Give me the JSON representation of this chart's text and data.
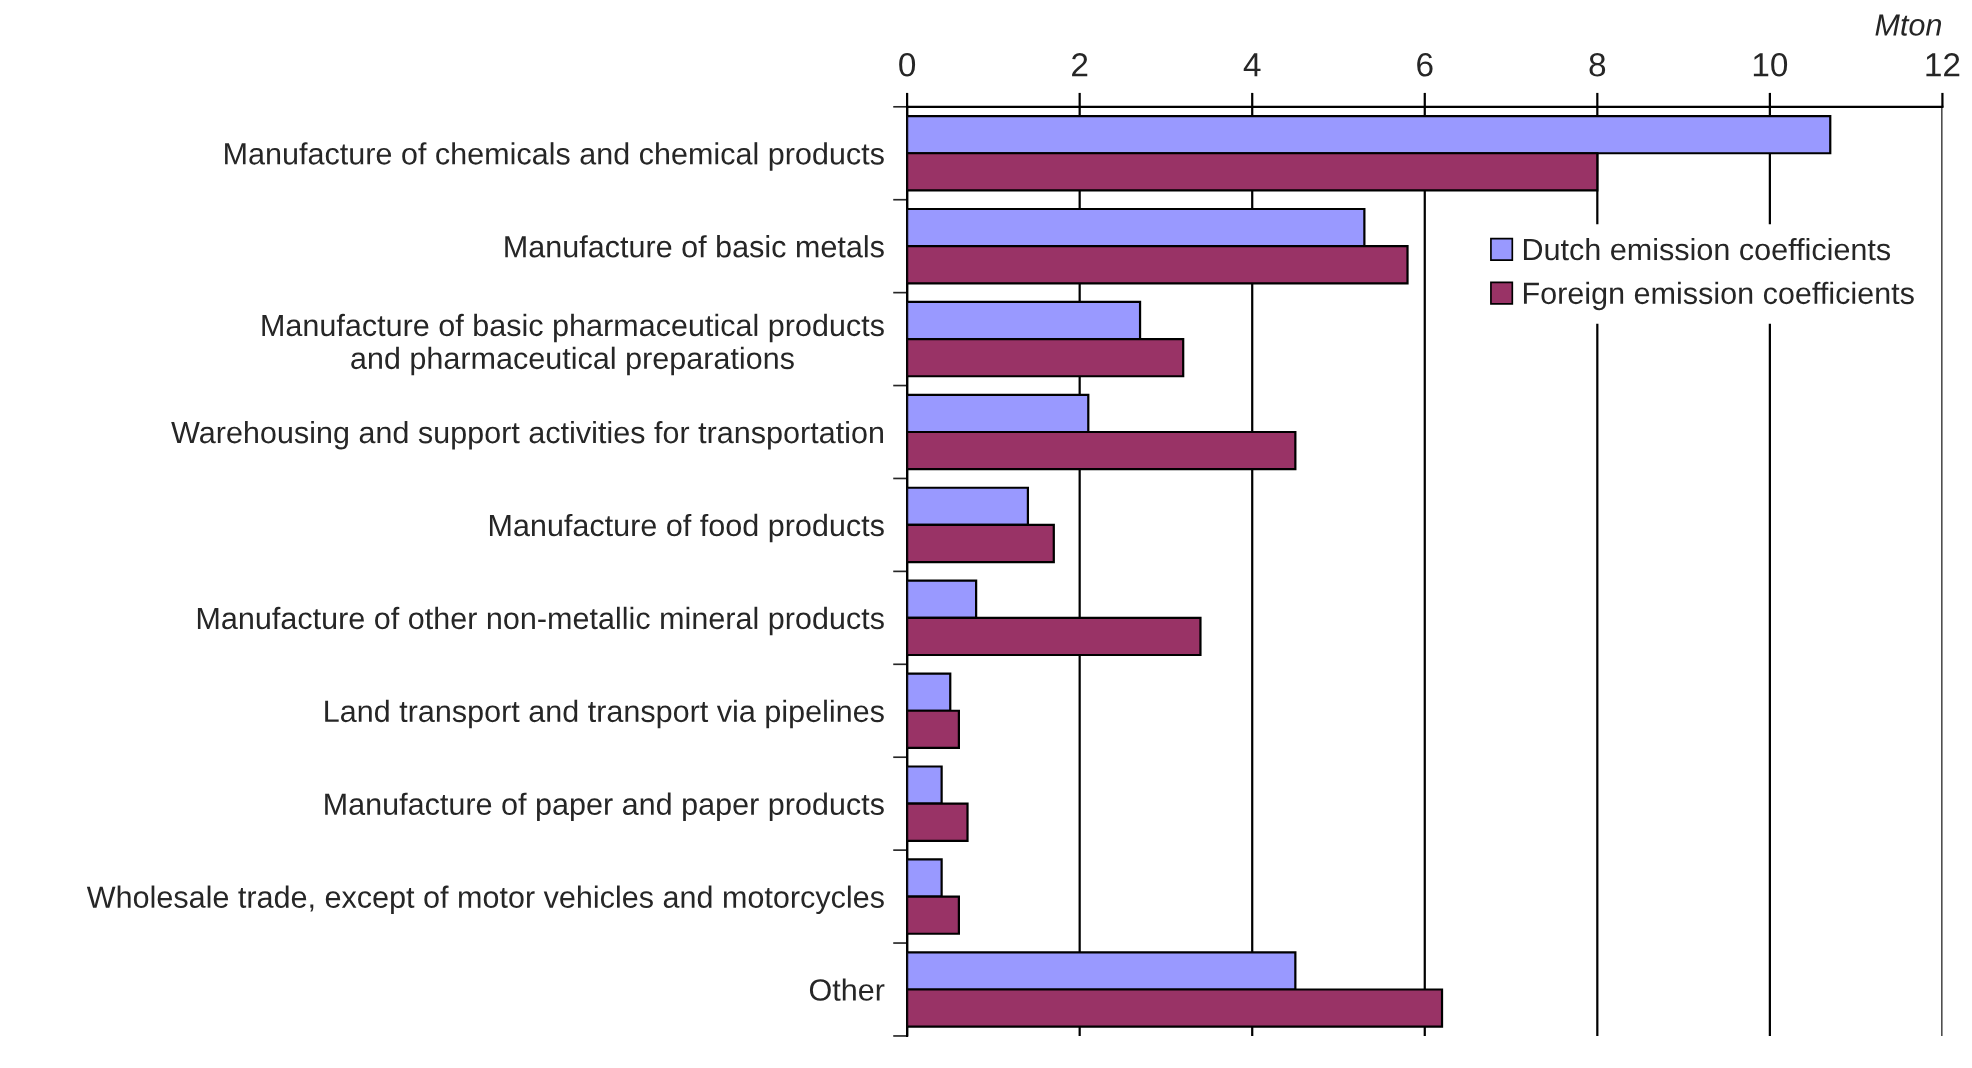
{
  "chart_data": {
    "type": "bar",
    "orientation": "horizontal",
    "xlabel": "Mton",
    "categories": [
      "Manufacture of chemicals and chemical products",
      "Manufacture of basic metals",
      "Manufacture of basic pharmaceutical products\nand pharmaceutical preparations",
      "Warehousing and support activities for transportation",
      "Manufacture of food products",
      "Manufacture of other non-metallic mineral products",
      "Land transport and transport via pipelines",
      "Manufacture of paper and paper products",
      "Wholesale trade, except of motor vehicles and motorcycles",
      "Other"
    ],
    "series": [
      {
        "name": "Dutch emission coefficients",
        "color": "#9999ff",
        "values": [
          10.7,
          5.3,
          2.7,
          2.1,
          1.4,
          0.8,
          0.5,
          0.4,
          0.4,
          4.5
        ]
      },
      {
        "name": "Foreign emission coefficients",
        "color": "#993366",
        "values": [
          8.0,
          5.8,
          3.2,
          4.5,
          1.7,
          3.4,
          0.6,
          0.7,
          0.6,
          6.2
        ]
      }
    ],
    "xlim": [
      0,
      12
    ],
    "xticks": [
      0,
      2,
      4,
      6,
      8,
      10,
      12
    ],
    "grid": "x",
    "legend": "right"
  }
}
